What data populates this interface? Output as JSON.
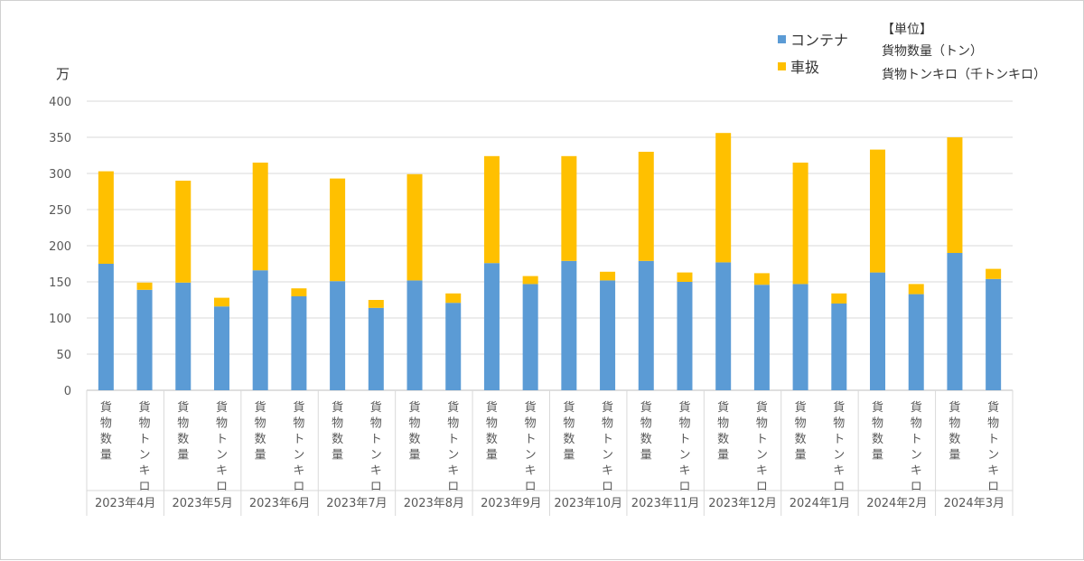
{
  "unit_note": {
    "heading": "【単位】",
    "line1": "貨物数量（トン）",
    "line2": "貨物トンキロ（千トンキロ）"
  },
  "y_unit": "万",
  "chart_data": {
    "type": "bar",
    "stacked": true,
    "title": "",
    "xlabel": "",
    "ylabel": "",
    "ylim": [
      0,
      400
    ],
    "yticks": [
      0,
      50,
      100,
      150,
      200,
      250,
      300,
      350,
      400
    ],
    "groups": [
      "2023年4月",
      "2023年5月",
      "2023年6月",
      "2023年7月",
      "2023年8月",
      "2023年9月",
      "2023年10月",
      "2023年11月",
      "2023年12月",
      "2024年1月",
      "2024年2月",
      "2024年3月"
    ],
    "subcategories": [
      "貨物数量",
      "貨物トンキロ"
    ],
    "series": [
      {
        "name": "コンテナ",
        "color": "#5b9bd5",
        "values": [
          175,
          139,
          149,
          116,
          166,
          130,
          151,
          114,
          152,
          121,
          176,
          147,
          179,
          152,
          179,
          150,
          177,
          146,
          147,
          120,
          163,
          133,
          190,
          154
        ]
      },
      {
        "name": "車扱",
        "color": "#ffc000",
        "values": [
          128,
          10,
          141,
          12,
          149,
          11,
          142,
          11,
          147,
          13,
          148,
          11,
          145,
          12,
          151,
          13,
          179,
          16,
          168,
          14,
          170,
          14,
          160,
          14
        ]
      }
    ],
    "legend_position": "top-right",
    "grid": true
  }
}
